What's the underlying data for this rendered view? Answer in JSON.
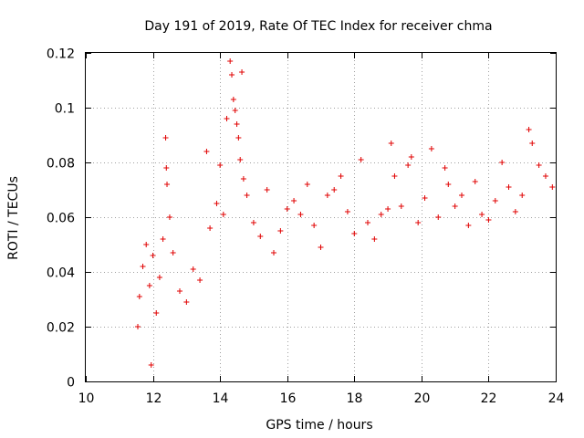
{
  "chart_data": {
    "type": "scatter",
    "title": "Day 191 of 2019, Rate Of TEC Index for receiver chma",
    "xlabel": "GPS time / hours",
    "ylabel": "ROTI / TECUs",
    "xlim": [
      10,
      24
    ],
    "ylim": [
      0,
      0.12
    ],
    "grid": true,
    "marker": "plus",
    "color": "#e00000",
    "x_ticks": [
      "10",
      "12",
      "14",
      "16",
      "18",
      "20",
      "22",
      "24"
    ],
    "y_ticks": [
      "0",
      "0.02",
      "0.04",
      "0.06",
      "0.08",
      "0.1",
      "0.12"
    ],
    "series": [
      {
        "name": "ROTI",
        "points": [
          [
            11.55,
            0.02
          ],
          [
            11.6,
            0.031
          ],
          [
            11.7,
            0.042
          ],
          [
            11.8,
            0.05
          ],
          [
            11.9,
            0.035
          ],
          [
            12.0,
            0.046
          ],
          [
            11.95,
            0.006
          ],
          [
            12.1,
            0.025
          ],
          [
            12.2,
            0.038
          ],
          [
            12.3,
            0.052
          ],
          [
            12.38,
            0.089
          ],
          [
            12.4,
            0.078
          ],
          [
            12.42,
            0.072
          ],
          [
            12.5,
            0.06
          ],
          [
            12.6,
            0.047
          ],
          [
            12.8,
            0.033
          ],
          [
            13.0,
            0.029
          ],
          [
            13.2,
            0.041
          ],
          [
            13.4,
            0.037
          ],
          [
            13.6,
            0.084
          ],
          [
            13.7,
            0.056
          ],
          [
            13.9,
            0.065
          ],
          [
            14.0,
            0.079
          ],
          [
            14.1,
            0.061
          ],
          [
            14.2,
            0.096
          ],
          [
            14.3,
            0.117
          ],
          [
            14.35,
            0.112
          ],
          [
            14.4,
            0.103
          ],
          [
            14.45,
            0.099
          ],
          [
            14.5,
            0.094
          ],
          [
            14.55,
            0.089
          ],
          [
            14.6,
            0.081
          ],
          [
            14.65,
            0.113
          ],
          [
            14.7,
            0.074
          ],
          [
            14.8,
            0.068
          ],
          [
            15.0,
            0.058
          ],
          [
            15.2,
            0.053
          ],
          [
            15.4,
            0.07
          ],
          [
            15.6,
            0.047
          ],
          [
            15.8,
            0.055
          ],
          [
            16.0,
            0.063
          ],
          [
            16.2,
            0.066
          ],
          [
            16.4,
            0.061
          ],
          [
            16.6,
            0.072
          ],
          [
            16.8,
            0.057
          ],
          [
            17.0,
            0.049
          ],
          [
            17.2,
            0.068
          ],
          [
            17.4,
            0.07
          ],
          [
            17.6,
            0.075
          ],
          [
            17.8,
            0.062
          ],
          [
            18.0,
            0.054
          ],
          [
            18.2,
            0.081
          ],
          [
            18.4,
            0.058
          ],
          [
            18.6,
            0.052
          ],
          [
            18.8,
            0.061
          ],
          [
            19.0,
            0.063
          ],
          [
            19.1,
            0.087
          ],
          [
            19.2,
            0.075
          ],
          [
            19.4,
            0.064
          ],
          [
            19.6,
            0.079
          ],
          [
            19.7,
            0.082
          ],
          [
            19.9,
            0.058
          ],
          [
            20.1,
            0.067
          ],
          [
            20.3,
            0.085
          ],
          [
            20.5,
            0.06
          ],
          [
            20.7,
            0.078
          ],
          [
            20.8,
            0.072
          ],
          [
            21.0,
            0.064
          ],
          [
            21.2,
            0.068
          ],
          [
            21.4,
            0.057
          ],
          [
            21.6,
            0.073
          ],
          [
            21.8,
            0.061
          ],
          [
            22.0,
            0.059
          ],
          [
            22.2,
            0.066
          ],
          [
            22.4,
            0.08
          ],
          [
            22.6,
            0.071
          ],
          [
            22.8,
            0.062
          ],
          [
            23.0,
            0.068
          ],
          [
            23.2,
            0.092
          ],
          [
            23.3,
            0.087
          ],
          [
            23.5,
            0.079
          ],
          [
            23.7,
            0.075
          ],
          [
            23.9,
            0.071
          ]
        ]
      }
    ]
  }
}
